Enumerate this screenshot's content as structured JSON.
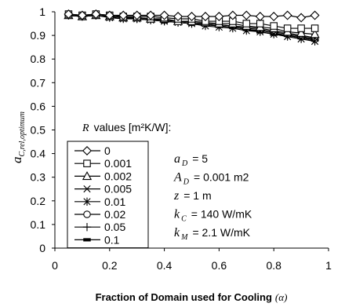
{
  "chart_data": {
    "type": "line",
    "xlabel": "Fraction of Domain used for Cooling",
    "xlabel_symbol": "(α)",
    "ylabel_main": "a",
    "ylabel_sub": "C,rel,optimum",
    "xlim": [
      0,
      1
    ],
    "ylim": [
      0,
      1
    ],
    "xticks": [
      "0",
      "0.2",
      "0.4",
      "0.6",
      "0.8",
      "1"
    ],
    "yticks": [
      "0",
      "0.1",
      "0.2",
      "0.3",
      "0.4",
      "0.5",
      "0.6",
      "0.7",
      "0.8",
      "0.9",
      "1"
    ],
    "grid": false,
    "x": [
      0.05,
      0.1,
      0.15,
      0.2,
      0.25,
      0.3,
      0.35,
      0.4,
      0.45,
      0.5,
      0.55,
      0.6,
      0.65,
      0.7,
      0.75,
      0.8,
      0.85,
      0.9,
      0.95
    ],
    "series": [
      {
        "name": "0",
        "marker": "diamond",
        "values": [
          0.99,
          0.985,
          0.99,
          0.985,
          0.985,
          0.985,
          0.985,
          0.985,
          0.98,
          0.98,
          0.98,
          0.98,
          0.985,
          0.985,
          0.98,
          0.98,
          0.985,
          0.975,
          0.985
        ]
      },
      {
        "name": "0.001",
        "marker": "square",
        "values": [
          0.99,
          0.985,
          0.99,
          0.985,
          0.98,
          0.98,
          0.98,
          0.975,
          0.97,
          0.97,
          0.96,
          0.96,
          0.96,
          0.95,
          0.95,
          0.94,
          0.93,
          0.93,
          0.93
        ]
      },
      {
        "name": "0.002",
        "marker": "triangle",
        "values": [
          0.985,
          0.98,
          0.985,
          0.98,
          0.975,
          0.975,
          0.97,
          0.97,
          0.96,
          0.96,
          0.955,
          0.95,
          0.95,
          0.94,
          0.935,
          0.93,
          0.915,
          0.91,
          0.905
        ]
      },
      {
        "name": "0.005",
        "marker": "x",
        "values": [
          0.985,
          0.98,
          0.985,
          0.98,
          0.975,
          0.975,
          0.97,
          0.965,
          0.96,
          0.955,
          0.95,
          0.945,
          0.94,
          0.935,
          0.93,
          0.92,
          0.91,
          0.9,
          0.89
        ]
      },
      {
        "name": "0.01",
        "marker": "star",
        "values": [
          0.985,
          0.98,
          0.985,
          0.975,
          0.97,
          0.97,
          0.965,
          0.96,
          0.955,
          0.95,
          0.94,
          0.935,
          0.93,
          0.92,
          0.915,
          0.905,
          0.895,
          0.885,
          0.875
        ]
      },
      {
        "name": "0.02",
        "marker": "circle",
        "values": [
          0.985,
          0.98,
          0.985,
          0.98,
          0.975,
          0.975,
          0.97,
          0.965,
          0.96,
          0.955,
          0.95,
          0.945,
          0.94,
          0.93,
          0.925,
          0.915,
          0.905,
          0.895,
          0.885
        ]
      },
      {
        "name": "0.05",
        "marker": "plus",
        "values": [
          0.985,
          0.98,
          0.985,
          0.98,
          0.975,
          0.97,
          0.965,
          0.96,
          0.955,
          0.95,
          0.945,
          0.94,
          0.935,
          0.925,
          0.92,
          0.91,
          0.9,
          0.89,
          0.88
        ]
      },
      {
        "name": "0.1",
        "marker": "dash",
        "values": [
          0.985,
          0.98,
          0.985,
          0.98,
          0.975,
          0.97,
          0.965,
          0.96,
          0.955,
          0.95,
          0.945,
          0.94,
          0.935,
          0.925,
          0.915,
          0.905,
          0.9,
          0.89,
          0.88
        ]
      }
    ],
    "legend_title_symbol": "R",
    "legend_title_text": "values [m²K/W]:",
    "legend_placement": "left",
    "annotations": [
      {
        "symbol": "a",
        "sub": "D",
        "text": "= 5"
      },
      {
        "symbol": "A",
        "sub": "D",
        "text": "= 0.001 m2"
      },
      {
        "symbol": "z",
        "sub": "",
        "text": "= 1 m"
      },
      {
        "symbol": "k",
        "sub": "C",
        "text": "= 140 W/mK"
      },
      {
        "symbol": "k",
        "sub": "M",
        "text": "= 2.1 W/mK"
      }
    ]
  }
}
